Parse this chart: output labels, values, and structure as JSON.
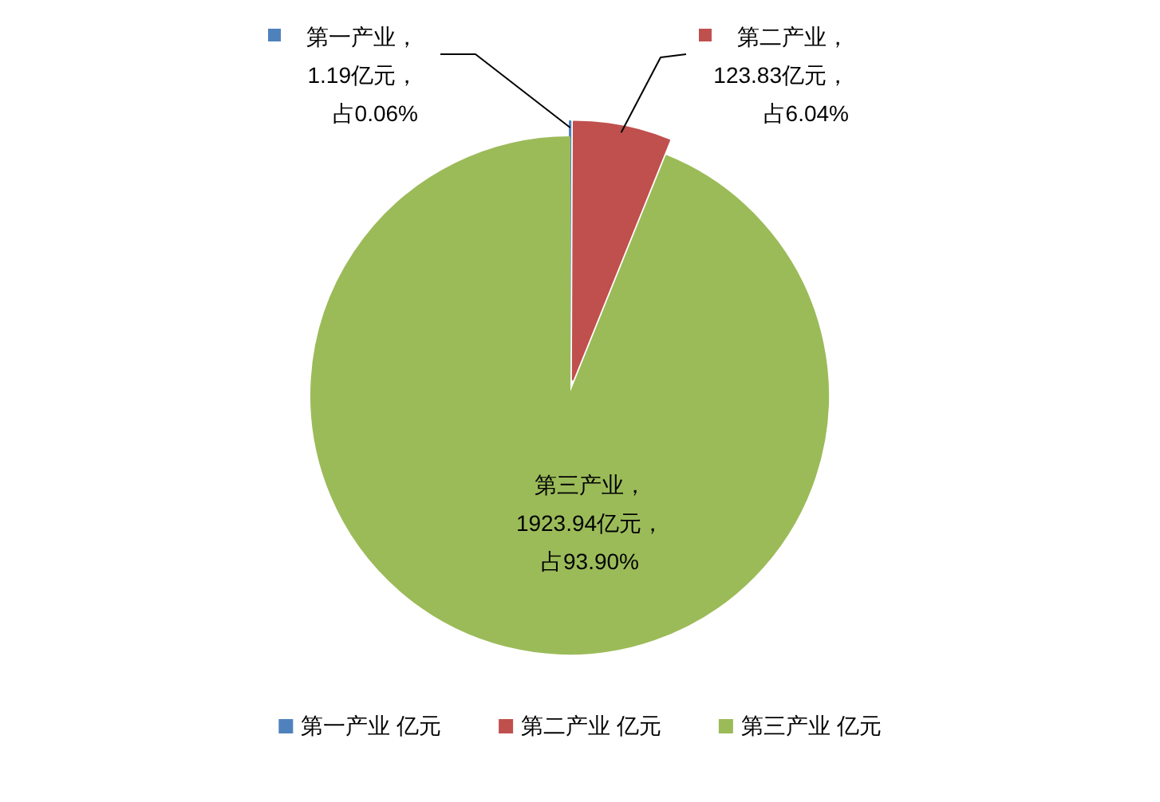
{
  "chart_data": {
    "type": "pie",
    "categories": [
      "第一产业 亿元",
      "第二产业 亿元",
      "第三产业 亿元"
    ],
    "values": [
      1.19,
      123.83,
      1923.94
    ],
    "colors": [
      "#4f81bd",
      "#c0504d",
      "#9bbb59"
    ],
    "value_labels": [
      "第一产业，1.19亿元，占0.06%",
      "第二产业，123.83亿元，占6.04%",
      "第三产业，1923.94亿元，占93.90%"
    ],
    "legend": "bottom"
  }
}
